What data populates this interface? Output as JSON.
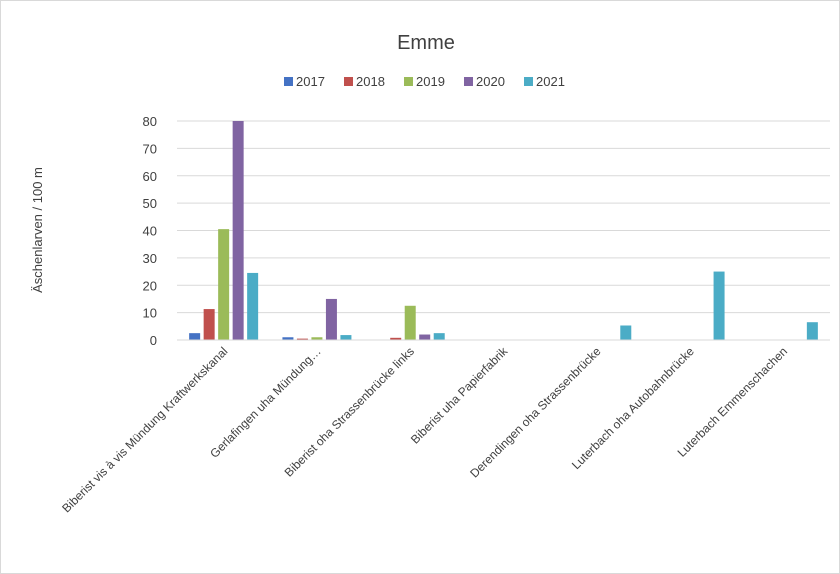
{
  "chart_data": {
    "type": "bar",
    "title": "Emme",
    "xlabel": "",
    "ylabel": "Äschenlarven / 100 m",
    "ylim": [
      0,
      80
    ],
    "yticks": [
      0,
      10,
      20,
      30,
      40,
      50,
      60,
      70,
      80
    ],
    "grid": true,
    "legend": "top",
    "categories": [
      "Biberist vis à vis Mündung Kraftwerkskanal",
      "Gerlafingen uha Mündung…",
      "Biberist oha Strassenbrücke links",
      "Biberist uha Papierfabrik",
      "Derendingen oha Strassenbrücke",
      "Luterbach oha Autobahnbrücke",
      "Luterbach Emmenschachen"
    ],
    "series": [
      {
        "name": "2017",
        "color": "#4472c4",
        "values": [
          2.5,
          1,
          0,
          0,
          0,
          0,
          0
        ]
      },
      {
        "name": "2018",
        "color": "#c0504d",
        "values": [
          11.3,
          0.5,
          0.8,
          0,
          0,
          0,
          0
        ]
      },
      {
        "name": "2019",
        "color": "#9bbb59",
        "values": [
          40.5,
          1,
          12.5,
          0,
          0,
          0,
          0
        ]
      },
      {
        "name": "2020",
        "color": "#8064a2",
        "values": [
          80,
          15,
          2,
          0,
          0,
          0,
          0
        ]
      },
      {
        "name": "2021",
        "color": "#4bacc6",
        "values": [
          24.5,
          1.8,
          2.5,
          0,
          5.3,
          25,
          6.5
        ]
      }
    ]
  }
}
